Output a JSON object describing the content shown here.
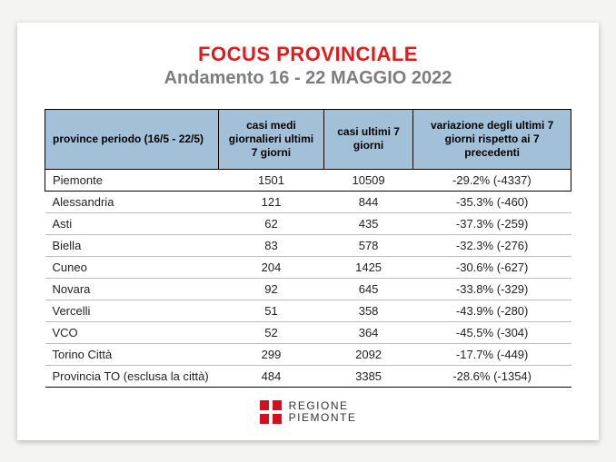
{
  "header": {
    "title": "FOCUS PROVINCIALE",
    "subtitle": "Andamento 16 - 22 MAGGIO 2022"
  },
  "table": {
    "columns": [
      "province periodo (16/5 - 22/5)",
      "casi medi giornalieri ultimi 7 giorni",
      "casi ultimi 7 giorni",
      "variazione degli ultimi 7 giorni rispetto ai 7 precedenti"
    ],
    "rows": [
      {
        "highlight": true,
        "cells": [
          "Piemonte",
          "1501",
          "10509",
          "-29.2% (-4337)"
        ]
      },
      {
        "highlight": false,
        "cells": [
          "Alessandria",
          "121",
          "844",
          "-35.3% (-460)"
        ]
      },
      {
        "highlight": false,
        "cells": [
          "Asti",
          "62",
          "435",
          "-37.3% (-259)"
        ]
      },
      {
        "highlight": false,
        "cells": [
          "Biella",
          "83",
          "578",
          "-32.3% (-276)"
        ]
      },
      {
        "highlight": false,
        "cells": [
          "Cuneo",
          "204",
          "1425",
          "-30.6% (-627)"
        ]
      },
      {
        "highlight": false,
        "cells": [
          "Novara",
          "92",
          "645",
          "-33.8% (-329)"
        ]
      },
      {
        "highlight": false,
        "cells": [
          "Vercelli",
          "51",
          "358",
          "-43.9% (-280)"
        ]
      },
      {
        "highlight": false,
        "cells": [
          "VCO",
          "52",
          "364",
          "-45.5% (-304)"
        ]
      },
      {
        "highlight": false,
        "cells": [
          "Torino Città",
          "299",
          "2092",
          "-17.7% (-449)"
        ]
      },
      {
        "highlight": false,
        "cells": [
          "Provincia TO (esclusa la città)",
          "484",
          "3385",
          "-28.6% (-1354)"
        ]
      }
    ]
  },
  "footer": {
    "line1": "REGIONE",
    "line2": "PIEMONTE"
  },
  "styling": {
    "page_bg": "#f4f4f2",
    "card_bg": "#ffffff",
    "title_color": "#e11b1b",
    "subtitle_color": "#7d7d7d",
    "header_bg": "#a3c0d9",
    "row_border": "#bdbdbd",
    "highlight_border": "#000000",
    "logo_bg": "#d31020",
    "text_color": "#222222",
    "title_fontsize": 22,
    "subtitle_fontsize": 20,
    "header_fontsize": 12,
    "cell_fontsize": 13,
    "footer_fontsize": 12
  }
}
